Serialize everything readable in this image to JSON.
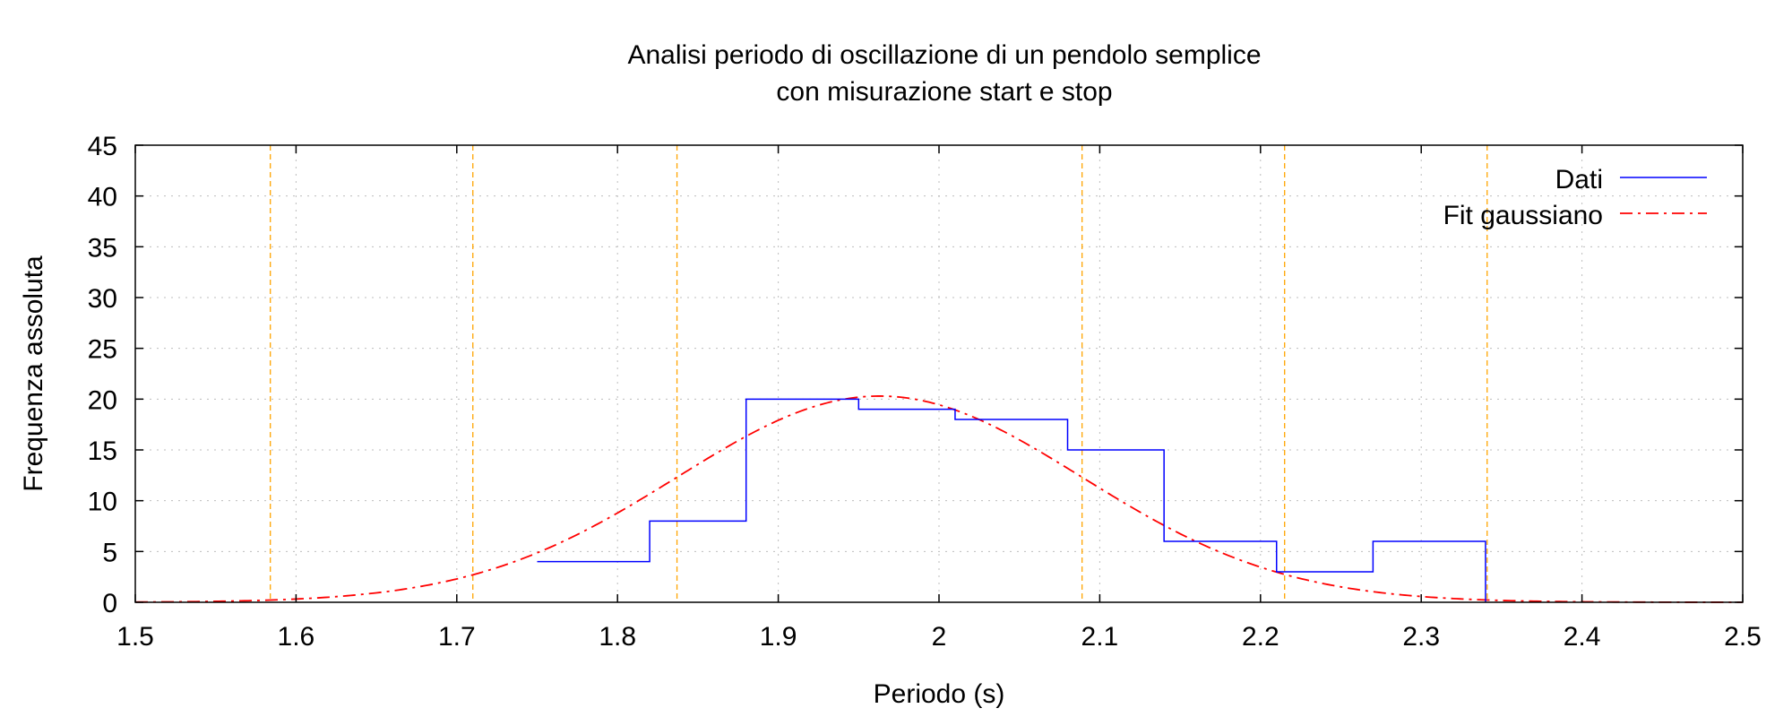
{
  "chart_data": {
    "type": "histogram-step",
    "title_lines": [
      "Analisi periodo di oscillazione di un pendolo semplice",
      "con misurazione start e stop"
    ],
    "xlabel": "Periodo (s)",
    "ylabel": "Frequenza assoluta",
    "xlim": [
      1.5,
      2.5
    ],
    "ylim": [
      0,
      45
    ],
    "x_ticks": [
      "1.5",
      "1.6",
      "1.7",
      "1.8",
      "1.9",
      "2",
      "2.1",
      "2.2",
      "2.3",
      "2.4",
      "2.5"
    ],
    "y_ticks": [
      "0",
      "5",
      "10",
      "15",
      "20",
      "25",
      "30",
      "35",
      "40",
      "45"
    ],
    "grid": true,
    "legend_position": "top-right",
    "series": [
      {
        "name": "Dati",
        "kind": "step",
        "color": "#0000ff",
        "bins": [
          {
            "x0": 1.75,
            "x1": 1.82,
            "count": 4
          },
          {
            "x0": 1.82,
            "x1": 1.88,
            "count": 8
          },
          {
            "x0": 1.88,
            "x1": 1.95,
            "count": 20
          },
          {
            "x0": 1.95,
            "x1": 2.01,
            "count": 19
          },
          {
            "x0": 2.01,
            "x1": 2.08,
            "count": 18
          },
          {
            "x0": 2.08,
            "x1": 2.14,
            "count": 15
          },
          {
            "x0": 2.14,
            "x1": 2.21,
            "count": 6
          },
          {
            "x0": 2.21,
            "x1": 2.27,
            "count": 3
          },
          {
            "x0": 2.27,
            "x1": 2.34,
            "count": 6
          }
        ]
      },
      {
        "name": "Fit gaussiano",
        "kind": "gaussian",
        "color": "#ff0000",
        "amplitude": 20.3,
        "mean": 1.963,
        "sigma": 0.126
      }
    ],
    "reference_lines": {
      "color": "#ffa500",
      "x": [
        1.584,
        1.71,
        1.837,
        2.089,
        2.215,
        2.341
      ]
    }
  }
}
